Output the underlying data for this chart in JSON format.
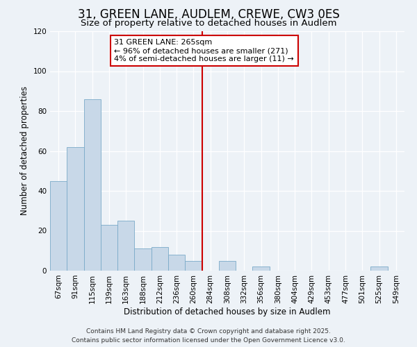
{
  "title": "31, GREEN LANE, AUDLEM, CREWE, CW3 0ES",
  "subtitle": "Size of property relative to detached houses in Audlem",
  "xlabel": "Distribution of detached houses by size in Audlem",
  "ylabel": "Number of detached properties",
  "bar_color": "#c8d8e8",
  "bar_edge_color": "#7aaac8",
  "background_color": "#edf2f7",
  "grid_color": "#ffffff",
  "bin_labels": [
    "67sqm",
    "91sqm",
    "115sqm",
    "139sqm",
    "163sqm",
    "188sqm",
    "212sqm",
    "236sqm",
    "260sqm",
    "284sqm",
    "308sqm",
    "332sqm",
    "356sqm",
    "380sqm",
    "404sqm",
    "429sqm",
    "453sqm",
    "477sqm",
    "501sqm",
    "525sqm",
    "549sqm"
  ],
  "bar_values": [
    45,
    62,
    86,
    23,
    25,
    11,
    12,
    8,
    5,
    0,
    5,
    0,
    2,
    0,
    0,
    0,
    0,
    0,
    0,
    2,
    0
  ],
  "vline_bin_index": 8,
  "vline_color": "#cc0000",
  "annotation_text": "31 GREEN LANE: 265sqm\n← 96% of detached houses are smaller (271)\n4% of semi-detached houses are larger (11) →",
  "annotation_box_color": "#ffffff",
  "annotation_box_edge": "#cc0000",
  "ylim": [
    0,
    120
  ],
  "yticks": [
    0,
    20,
    40,
    60,
    80,
    100,
    120
  ],
  "footnote": "Contains HM Land Registry data © Crown copyright and database right 2025.\nContains public sector information licensed under the Open Government Licence v3.0.",
  "title_fontsize": 12,
  "subtitle_fontsize": 9.5,
  "label_fontsize": 8.5,
  "tick_fontsize": 7.5,
  "annotation_fontsize": 8,
  "footnote_fontsize": 6.5
}
